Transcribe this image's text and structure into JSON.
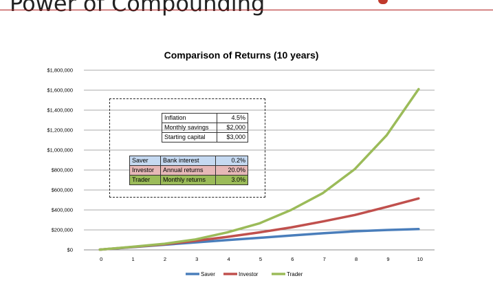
{
  "slide": {
    "title": "Power of Compounding"
  },
  "colors": {
    "saver": "#4a7ebb",
    "investor": "#c0504d",
    "trader": "#9bbb59",
    "saver_fill": "#c5d9f1",
    "investor_fill": "#e6b8b7",
    "trader_fill": "#9bbb59"
  },
  "inputs": {
    "rows": [
      {
        "label": "Inflation",
        "value": "4.5%"
      },
      {
        "label": "Monthly savings",
        "value": "$2,000"
      },
      {
        "label": "Starting capital",
        "value": "$3,000"
      }
    ]
  },
  "strategies": {
    "rows": [
      {
        "name": "Saver",
        "label": "Bank interest",
        "value": "0.2%"
      },
      {
        "name": "Investor",
        "label": "Annual returns",
        "value": "20.0%"
      },
      {
        "name": "Trader",
        "label": "Monthly returns",
        "value": "3.0%"
      }
    ]
  },
  "chart_data": {
    "type": "line",
    "title": "Comparison of Returns (10 years)",
    "xlabel": "",
    "ylabel": "",
    "x": [
      0,
      1,
      2,
      3,
      4,
      5,
      6,
      7,
      8,
      9,
      10
    ],
    "ylim": [
      0,
      1800000
    ],
    "ytick_values": [
      0,
      200000,
      400000,
      600000,
      800000,
      1000000,
      1200000,
      1400000,
      1600000,
      1800000
    ],
    "ytick_labels": [
      "$0",
      "$200,000",
      "$400,000",
      "$600,000",
      "$800,000",
      "$1,000,000",
      "$1,200,000",
      "$1,400,000",
      "$1,600,000",
      "$1,800,000"
    ],
    "grid": true,
    "legend_position": "bottom",
    "series": [
      {
        "name": "Saver",
        "color": "#4a7ebb",
        "values": [
          3000,
          27000,
          51000,
          75000,
          98000,
          121000,
          144000,
          166000,
          186000,
          199000,
          208000
        ]
      },
      {
        "name": "Investor",
        "color": "#c0504d",
        "values": [
          3000,
          28000,
          55000,
          90000,
          130000,
          175000,
          225000,
          285000,
          350000,
          430000,
          515000
        ]
      },
      {
        "name": "Trader",
        "color": "#9bbb59",
        "values": [
          3000,
          30000,
          60000,
          105000,
          175000,
          265000,
          400000,
          570000,
          810000,
          1150000,
          1610000
        ]
      }
    ]
  }
}
